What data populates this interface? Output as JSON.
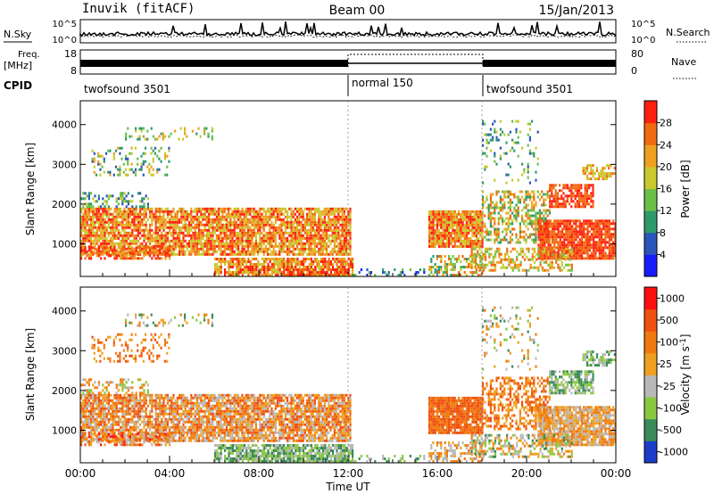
{
  "header": {
    "station": "Inuvik (fitACF)",
    "beam": "Beam 00",
    "date": "15/Jan/2013"
  },
  "side_labels": {
    "nsky": "N.Sky",
    "freq_top": "Freq.",
    "freq_unit": "[MHz]",
    "cpid": "CPID",
    "nsearch": "N.Search",
    "nave": "Nave"
  },
  "chart_data": [
    {
      "type": "line",
      "name": "noise",
      "ylabel": "N.Sky",
      "ylabel_right": "N.Search",
      "ytick_labels_left": [
        "10^5",
        "10^0"
      ],
      "ytick_labels_right": [
        "10^5",
        "10^0"
      ],
      "xlim": [
        0,
        24
      ],
      "ylim_log10": [
        0,
        5
      ]
    },
    {
      "type": "line",
      "name": "frequency",
      "ylabel": "[MHz]",
      "ylabel_right": "Nave",
      "ylim": [
        8,
        18
      ],
      "ytick_labels_left": [
        "18",
        "8"
      ],
      "ylim_right": [
        0,
        80
      ],
      "ytick_labels_right": [
        "80",
        "0"
      ],
      "freq_mhz_approx": 10.5,
      "nave_normal_mode": 75,
      "nave_twofsound": 20
    },
    {
      "type": "table",
      "name": "cpid",
      "ylabel": "CPID",
      "segments": [
        {
          "label": "twofsound 3501",
          "start_hr": 0,
          "end_hr": 12
        },
        {
          "label": "normal 150",
          "start_hr": 12,
          "end_hr": 18
        },
        {
          "label": "twofsound 3501",
          "start_hr": 18,
          "end_hr": 24
        }
      ]
    },
    {
      "type": "heatmap",
      "name": "power",
      "ylabel": "Slant Range [km]",
      "colorbar_label": "Power [dB]",
      "xlim": [
        0,
        24
      ],
      "ylim": [
        180,
        4600
      ],
      "yticks": [
        1000,
        2000,
        3000,
        4000
      ],
      "colorbar_ticks": [
        "4",
        "8",
        "12",
        "16",
        "20",
        "24",
        "28"
      ],
      "colorbar_colors": [
        "#1a1aff",
        "#2b55b8",
        "#2e9a6a",
        "#6cc04a",
        "#c9c92e",
        "#f0a020",
        "#f06a10",
        "#ff2010"
      ]
    },
    {
      "type": "heatmap",
      "name": "velocity",
      "ylabel": "Slant Range [km]",
      "colorbar_label": "Velocity [m s^-1]",
      "xlabel": "Time UT",
      "xlim": [
        0,
        24
      ],
      "ylim": [
        180,
        4600
      ],
      "yticks": [
        1000,
        2000,
        3000,
        4000
      ],
      "xtick_labels": [
        "00:00",
        "04:00",
        "08:00",
        "12:00",
        "16:00",
        "20:00",
        "00:00"
      ],
      "colorbar_ticks": [
        "1000",
        "500",
        "100",
        "25",
        "-25",
        "-100",
        "-500",
        "-1000"
      ],
      "colorbar_colors": [
        "#1a3cc8",
        "#3a8a5a",
        "#8ac840",
        "#b8b8b8",
        "#f0a020",
        "#f07a10",
        "#f05010",
        "#ff1010"
      ]
    }
  ]
}
